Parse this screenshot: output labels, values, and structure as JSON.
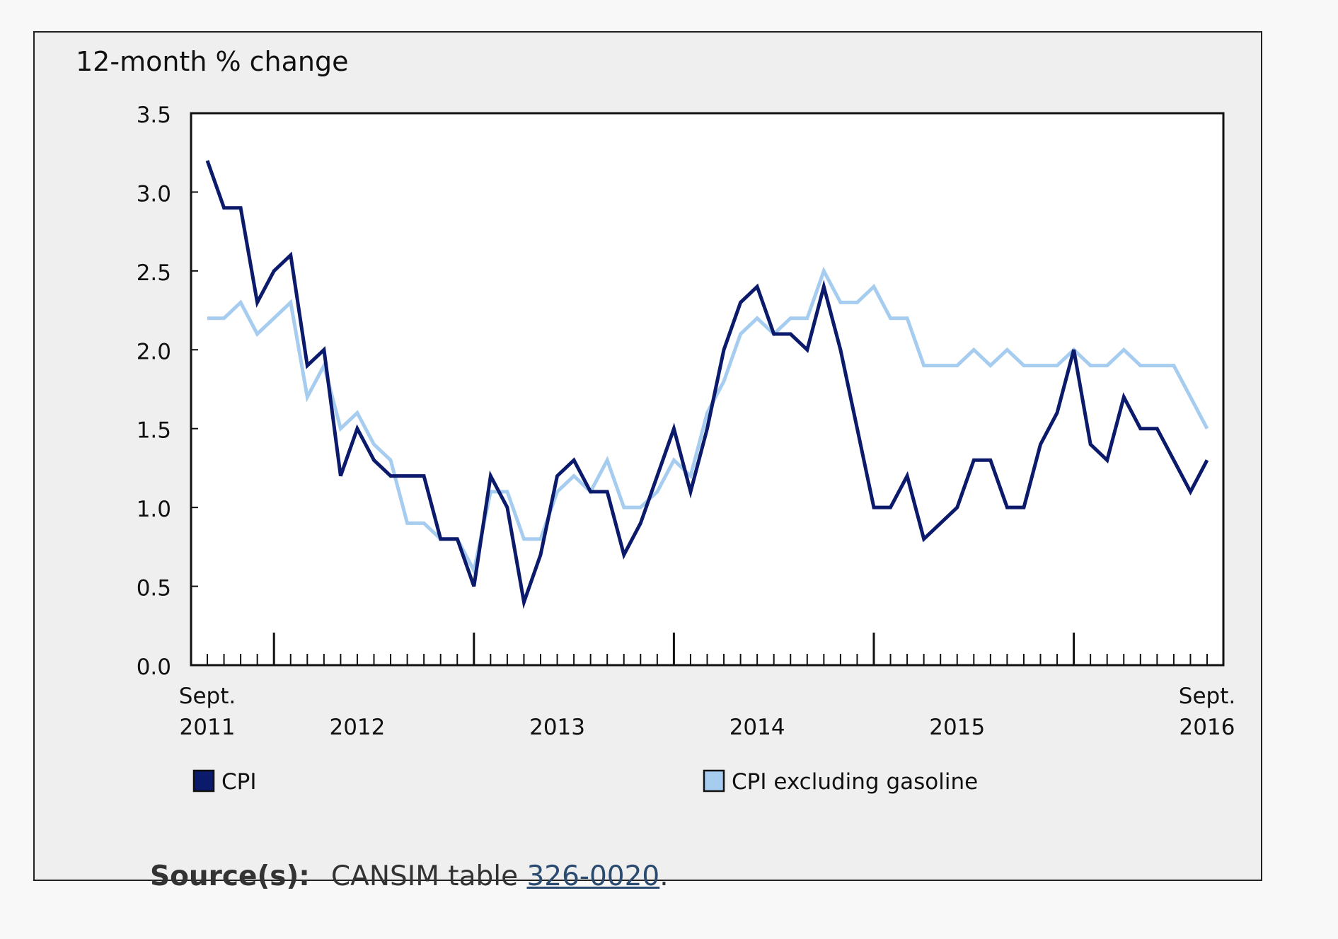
{
  "chart_data": {
    "type": "line",
    "ylabel": "12-month % change",
    "ylim": [
      0,
      3.5
    ],
    "yticks": [
      "0.0",
      "0.5",
      "1.0",
      "1.5",
      "2.0",
      "2.5",
      "3.0",
      "3.5"
    ],
    "x_start": "2011-09",
    "x_end": "2016-09",
    "x_labels": [
      {
        "month": "2011-09",
        "lines": [
          "Sept.",
          "2011"
        ]
      },
      {
        "month": "2012-06",
        "lines": [
          "2012"
        ]
      },
      {
        "month": "2013-06",
        "lines": [
          "2013"
        ]
      },
      {
        "month": "2014-06",
        "lines": [
          "2014"
        ]
      },
      {
        "month": "2015-06",
        "lines": [
          "2015"
        ]
      },
      {
        "month": "2016-09",
        "lines": [
          "Sept.",
          "2016"
        ]
      }
    ],
    "major_tick_months": [
      "2012-01",
      "2013-01",
      "2014-01",
      "2015-01",
      "2016-01"
    ],
    "legend_position": "bottom",
    "grid": false,
    "series": [
      {
        "name": "CPI",
        "color": "#0b1a6b",
        "values": [
          3.2,
          2.9,
          2.9,
          2.3,
          2.5,
          2.6,
          1.9,
          2.0,
          1.2,
          1.5,
          1.3,
          1.2,
          1.2,
          1.2,
          0.8,
          0.8,
          0.5,
          1.2,
          1.0,
          0.4,
          0.7,
          1.2,
          1.3,
          1.1,
          1.1,
          0.7,
          0.9,
          1.2,
          1.5,
          1.1,
          1.5,
          2.0,
          2.3,
          2.4,
          2.1,
          2.1,
          2.0,
          2.4,
          2.0,
          1.5,
          1.0,
          1.0,
          1.2,
          0.8,
          0.9,
          1.0,
          1.3,
          1.3,
          1.0,
          1.0,
          1.4,
          1.6,
          2.0,
          1.4,
          1.3,
          1.7,
          1.5,
          1.5,
          1.3,
          1.1,
          1.3
        ]
      },
      {
        "name": "CPI excluding gasoline",
        "color": "#a6cdf0",
        "values": [
          2.2,
          2.2,
          2.3,
          2.1,
          2.2,
          2.3,
          1.7,
          1.9,
          1.5,
          1.6,
          1.4,
          1.3,
          0.9,
          0.9,
          0.8,
          0.8,
          0.6,
          1.1,
          1.1,
          0.8,
          0.8,
          1.1,
          1.2,
          1.1,
          1.3,
          1.0,
          1.0,
          1.1,
          1.3,
          1.2,
          1.6,
          1.8,
          2.1,
          2.2,
          2.1,
          2.2,
          2.2,
          2.5,
          2.3,
          2.3,
          2.4,
          2.2,
          2.2,
          1.9,
          1.9,
          1.9,
          2.0,
          1.9,
          2.0,
          1.9,
          1.9,
          1.9,
          2.0,
          1.9,
          1.9,
          2.0,
          1.9,
          1.9,
          1.9,
          1.7,
          1.5
        ]
      }
    ]
  },
  "source": {
    "label": "Source(s):",
    "prefix": "CANSIM table ",
    "link_text": "326-0020",
    "suffix": "."
  }
}
